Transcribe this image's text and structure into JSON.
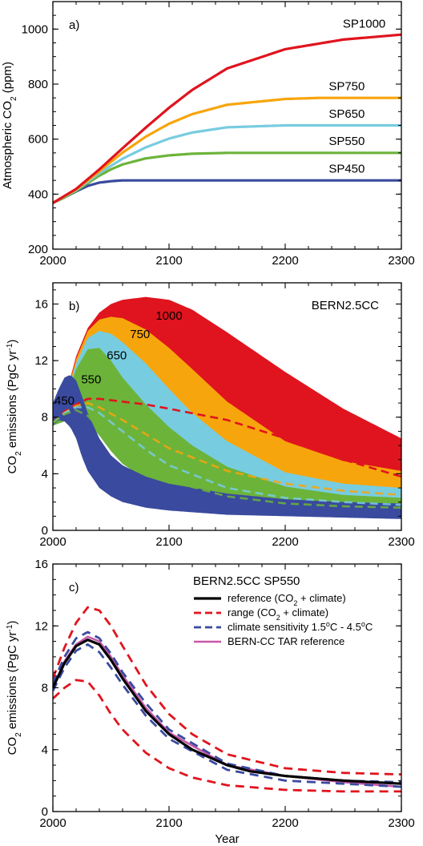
{
  "colors": {
    "sp450": "#3a4a9e",
    "sp550": "#6cb33a",
    "sp650": "#78cce0",
    "sp750": "#f7a50c",
    "sp1000": "#e0141e",
    "reference": "#000000",
    "range": "#e0141e",
    "sensitivity": "#3a4a9e",
    "tar": "#c858a8"
  },
  "chart_data": [
    {
      "type": "line",
      "panel_label": "a)",
      "xlabel": "",
      "ylabel": "Atmospheric CO2 (ppm)",
      "ylabel_main": "Atmospheric CO",
      "ylabel_sub": "2",
      "ylabel_tail": " (ppm)",
      "xlim": [
        2000,
        2300
      ],
      "ylim": [
        200,
        1100
      ],
      "xticks": [
        2000,
        2100,
        2200,
        2300
      ],
      "yticks": [
        200,
        400,
        600,
        800,
        1000
      ],
      "series": [
        {
          "name": "SP450",
          "x": [
            2000,
            2010,
            2020,
            2030,
            2040,
            2050,
            2060,
            2080,
            2100,
            2200,
            2300
          ],
          "y": [
            368,
            388,
            410,
            430,
            442,
            447,
            450,
            450,
            450,
            450,
            450
          ]
        },
        {
          "name": "SP550",
          "x": [
            2000,
            2010,
            2020,
            2030,
            2040,
            2050,
            2060,
            2080,
            2100,
            2120,
            2150,
            2200,
            2300
          ],
          "y": [
            368,
            388,
            412,
            440,
            467,
            490,
            508,
            530,
            541,
            547,
            550,
            550,
            550
          ]
        },
        {
          "name": "SP650",
          "x": [
            2000,
            2020,
            2040,
            2060,
            2080,
            2100,
            2120,
            2150,
            2200,
            2300
          ],
          "y": [
            368,
            415,
            476,
            529,
            570,
            602,
            624,
            643,
            650,
            650
          ]
        },
        {
          "name": "SP750",
          "x": [
            2000,
            2020,
            2040,
            2060,
            2080,
            2100,
            2120,
            2150,
            2200,
            2230,
            2300
          ],
          "y": [
            368,
            417,
            483,
            551,
            609,
            656,
            691,
            725,
            746,
            750,
            750
          ]
        },
        {
          "name": "SP1000",
          "x": [
            2000,
            2020,
            2040,
            2060,
            2080,
            2100,
            2120,
            2150,
            2200,
            2250,
            2300
          ],
          "y": [
            368,
            419,
            490,
            567,
            642,
            714,
            779,
            857,
            927,
            962,
            980
          ]
        }
      ],
      "annotations": [
        {
          "text": "SP1000",
          "x": 2268,
          "y": 1005
        },
        {
          "text": "SP750",
          "x": 2253,
          "y": 778
        },
        {
          "text": "SP650",
          "x": 2253,
          "y": 678
        },
        {
          "text": "SP550",
          "x": 2253,
          "y": 578
        },
        {
          "text": "SP450",
          "x": 2253,
          "y": 478
        }
      ]
    },
    {
      "type": "area",
      "panel_label": "b)",
      "title": "BERN2.5CC",
      "xlabel": "",
      "ylabel": "CO2 emissions (PgC yr-1)",
      "ylabel_main": "CO",
      "ylabel_sub": "2",
      "ylabel_tail": " emissions (PgC yr",
      "ylabel_sup": "-1",
      "ylabel_end": ")",
      "xlim": [
        2000,
        2300
      ],
      "ylim": [
        0,
        17.5
      ],
      "xticks": [
        2000,
        2100,
        2200,
        2300
      ],
      "yticks": [
        0,
        4,
        8,
        12,
        16
      ],
      "bands": [
        {
          "name": "1000",
          "x": [
            2000,
            2010,
            2020,
            2030,
            2040,
            2050,
            2060,
            2080,
            2100,
            2120,
            2150,
            2200,
            2250,
            2300
          ],
          "upper": [
            7.8,
            9.2,
            12.3,
            14.3,
            15.4,
            16.0,
            16.3,
            16.5,
            16.3,
            15.6,
            14.0,
            11.2,
            8.6,
            6.5
          ],
          "lower": [
            7.4,
            8.0,
            8.5,
            8.9,
            9.2,
            9.1,
            8.9,
            8.6,
            8.3,
            7.9,
            7.2,
            5.8,
            4.6,
            3.8
          ]
        },
        {
          "name": "750",
          "x": [
            2000,
            2010,
            2020,
            2030,
            2040,
            2050,
            2060,
            2080,
            2100,
            2120,
            2150,
            2200,
            2250,
            2300
          ],
          "upper": [
            7.8,
            9.1,
            12.1,
            14.1,
            14.9,
            15.1,
            15.0,
            14.2,
            12.9,
            11.4,
            9.1,
            6.3,
            4.9,
            4.2
          ],
          "lower": [
            7.4,
            7.9,
            8.4,
            8.7,
            8.8,
            8.6,
            8.1,
            7.0,
            5.9,
            4.9,
            3.9,
            3.0,
            2.6,
            2.2
          ]
        },
        {
          "name": "650",
          "x": [
            2000,
            2010,
            2020,
            2030,
            2040,
            2050,
            2060,
            2080,
            2100,
            2120,
            2150,
            2200,
            2250,
            2300
          ],
          "upper": [
            7.8,
            9.0,
            11.8,
            13.6,
            14.1,
            13.9,
            13.3,
            11.8,
            10.0,
            8.3,
            6.3,
            4.1,
            3.3,
            3.0
          ],
          "lower": [
            7.4,
            7.8,
            8.3,
            8.5,
            8.3,
            7.8,
            7.1,
            5.8,
            4.6,
            3.6,
            2.7,
            2.1,
            1.8,
            1.6
          ]
        },
        {
          "name": "550",
          "x": [
            2000,
            2010,
            2020,
            2030,
            2040,
            2050,
            2060,
            2080,
            2100,
            2120,
            2150,
            2200,
            2250,
            2300
          ],
          "upper": [
            7.8,
            9.0,
            11.4,
            12.8,
            12.9,
            12.0,
            10.8,
            8.9,
            7.3,
            6.0,
            4.5,
            3.1,
            2.5,
            2.3
          ],
          "lower": [
            7.4,
            7.7,
            8.0,
            7.6,
            6.7,
            5.6,
            4.7,
            3.6,
            2.9,
            2.5,
            2.0,
            1.6,
            1.4,
            1.3
          ]
        },
        {
          "name": "450",
          "x": [
            2000,
            2005,
            2010,
            2015,
            2020,
            2025,
            2030,
            2040,
            2050,
            2060,
            2080,
            2100,
            2150,
            2200,
            2250,
            2300
          ],
          "upper": [
            9.0,
            10.0,
            10.8,
            11.0,
            10.6,
            9.5,
            8.3,
            6.5,
            5.3,
            4.6,
            3.8,
            3.3,
            2.6,
            2.2,
            2.0,
            1.9
          ],
          "lower": [
            7.4,
            7.8,
            7.7,
            7.3,
            6.5,
            5.2,
            4.2,
            3.0,
            2.4,
            2.0,
            1.6,
            1.4,
            1.1,
            1.0,
            0.9,
            0.8
          ]
        }
      ],
      "dashed_series": [
        {
          "name": "1000",
          "x": [
            2000,
            2010,
            2020,
            2030,
            2040,
            2060,
            2080,
            2100,
            2150,
            2200,
            2250,
            2300
          ],
          "y": [
            7.6,
            8.4,
            8.9,
            9.3,
            9.3,
            9.1,
            8.9,
            8.6,
            7.8,
            6.5,
            5.0,
            3.8
          ]
        },
        {
          "name": "750",
          "x": [
            2000,
            2010,
            2020,
            2030,
            2040,
            2060,
            2080,
            2100,
            2150,
            2200,
            2250,
            2300
          ],
          "y": [
            7.6,
            8.3,
            8.8,
            9.0,
            8.7,
            7.8,
            6.8,
            5.8,
            4.2,
            3.3,
            2.8,
            2.5
          ]
        },
        {
          "name": "650",
          "x": [
            2000,
            2010,
            2020,
            2030,
            2040,
            2060,
            2080,
            2100,
            2150,
            2200,
            2250,
            2300
          ],
          "y": [
            7.6,
            8.3,
            8.7,
            8.7,
            8.3,
            7.0,
            5.7,
            4.6,
            3.0,
            2.3,
            2.0,
            1.8
          ]
        },
        {
          "name": "550",
          "x": [
            2000,
            2010,
            2020,
            2030,
            2040,
            2060,
            2080,
            2100,
            2150,
            2200,
            2250,
            2300
          ],
          "y": [
            7.6,
            8.2,
            8.5,
            8.1,
            7.2,
            5.5,
            4.3,
            3.5,
            2.4,
            1.9,
            1.7,
            1.6
          ]
        }
      ],
      "annotations": [
        {
          "text": "1000",
          "x": 2100,
          "y": 14.9
        },
        {
          "text": "750",
          "x": 2075,
          "y": 13.6
        },
        {
          "text": "650",
          "x": 2055,
          "y": 12.1
        },
        {
          "text": "550",
          "x": 2033,
          "y": 10.4
        },
        {
          "text": "450",
          "x": 2010,
          "y": 8.9
        }
      ]
    },
    {
      "type": "line",
      "panel_label": "c)",
      "title": "BERN2.5CC SP550",
      "xlabel": "Year",
      "ylabel": "CO2 emissions (PgC yr-1)",
      "ylabel_main": "CO",
      "ylabel_sub": "2",
      "ylabel_tail": " emissions (PgC yr",
      "ylabel_sup": "-1",
      "ylabel_end": ")",
      "xlim": [
        2000,
        2300
      ],
      "ylim": [
        0,
        16
      ],
      "xticks": [
        2000,
        2100,
        2200,
        2300
      ],
      "yticks": [
        0,
        4,
        8,
        12,
        16
      ],
      "legend": [
        {
          "key": "reference",
          "text": "reference (CO",
          "sub": "2",
          "tail": " + climate)"
        },
        {
          "key": "range",
          "text": "range (CO",
          "sub": "2",
          "tail": " + climate)"
        },
        {
          "key": "sensitivity",
          "text": "climate sensitivity 1.5",
          "sup1": "o",
          "mid": "C - 4.5",
          "sup2": "o",
          "tail": "C"
        },
        {
          "key": "tar",
          "text": "BERN-CC TAR reference"
        }
      ],
      "series": [
        {
          "name": "reference",
          "x": [
            2000,
            2010,
            2020,
            2030,
            2040,
            2050,
            2060,
            2080,
            2100,
            2120,
            2150,
            2170,
            2200,
            2250,
            2300
          ],
          "y": [
            8.0,
            9.6,
            10.7,
            11.1,
            10.8,
            9.8,
            8.6,
            6.5,
            5.0,
            4.0,
            3.0,
            2.6,
            2.3,
            2.0,
            1.8
          ]
        },
        {
          "name": "range-upper",
          "x": [
            2000,
            2010,
            2020,
            2030,
            2040,
            2050,
            2060,
            2080,
            2100,
            2120,
            2150,
            2200,
            2250,
            2300
          ],
          "y": [
            8.6,
            10.6,
            12.2,
            13.2,
            13.0,
            12.0,
            10.7,
            8.2,
            6.3,
            5.0,
            3.7,
            2.8,
            2.5,
            2.4
          ]
        },
        {
          "name": "range-lower",
          "x": [
            2000,
            2010,
            2020,
            2030,
            2040,
            2050,
            2060,
            2080,
            2100,
            2120,
            2150,
            2200,
            2250,
            2300
          ],
          "y": [
            7.3,
            8.0,
            8.5,
            8.4,
            7.5,
            6.3,
            5.3,
            3.8,
            2.8,
            2.2,
            1.7,
            1.4,
            1.3,
            1.3
          ]
        },
        {
          "name": "sensitivity-high",
          "x": [
            2000,
            2010,
            2020,
            2030,
            2040,
            2050,
            2060,
            2080,
            2100,
            2150,
            2200,
            2250,
            2300
          ],
          "y": [
            8.3,
            10.0,
            11.2,
            11.6,
            11.2,
            10.2,
            9.0,
            7.0,
            5.3,
            3.1,
            2.3,
            2.0,
            1.9
          ]
        },
        {
          "name": "sensitivity-low",
          "x": [
            2000,
            2010,
            2020,
            2030,
            2040,
            2050,
            2060,
            2080,
            2100,
            2150,
            2200,
            2250,
            2300
          ],
          "y": [
            7.8,
            9.3,
            10.4,
            10.8,
            10.3,
            9.3,
            8.2,
            6.2,
            4.7,
            2.7,
            2.0,
            1.8,
            1.6
          ]
        },
        {
          "name": "tar",
          "x": [
            2000,
            2010,
            2020,
            2030,
            2040,
            2050,
            2060,
            2080,
            2100,
            2150,
            2200,
            2250,
            2300
          ],
          "y": [
            8.0,
            9.7,
            10.8,
            11.3,
            11.0,
            10.0,
            8.8,
            6.7,
            5.1,
            3.0,
            2.3,
            1.9,
            1.6
          ]
        }
      ]
    }
  ]
}
